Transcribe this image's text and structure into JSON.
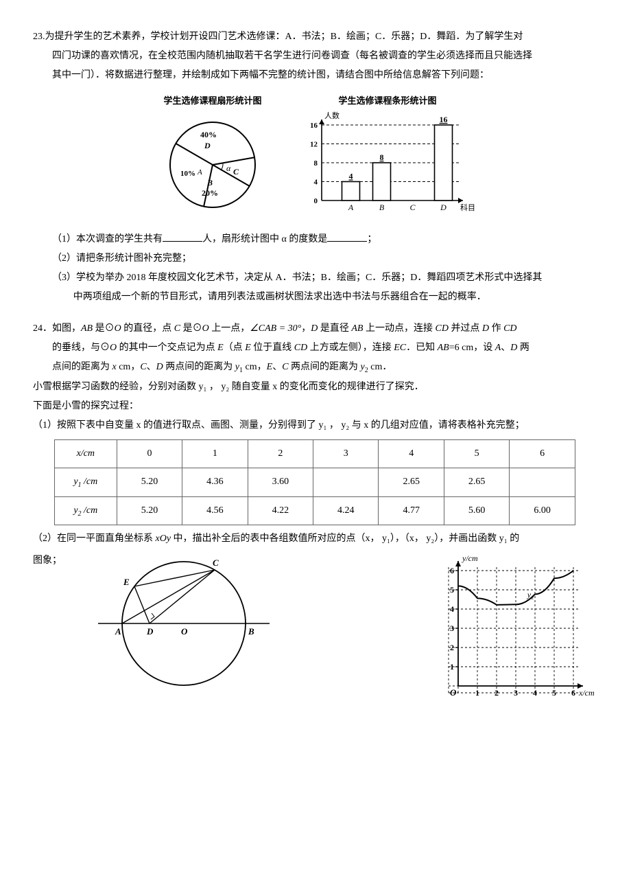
{
  "q23": {
    "number": "23.",
    "intro_l1": "为提升学生的艺术素养，学校计划开设四门艺术选修课：A．书法；B．绘画；C．乐器；D．舞蹈．为了解学生对",
    "intro_l2": "四门功课的喜欢情况，在全校范围内随机抽取若干名学生进行问卷调查（每名被调查的学生必须选择而且只能选择",
    "intro_l3": "其中一门）．将数据进行整理，并绘制成如下两幅不完整的统计图，请结合图中所给信息解答下列问题：",
    "pie_title": "学生选修课程扇形统计图",
    "bar_title": "学生选修课程条形统计图",
    "pie": {
      "labels": {
        "A": "A",
        "B": "B",
        "C": "C",
        "D": "D",
        "alpha": "α"
      },
      "pct": {
        "A": "10%",
        "B": "20%",
        "D": "40%"
      },
      "colors": {
        "bg": "#ffffff",
        "stroke": "#000000"
      }
    },
    "bar": {
      "ylabel": "人数",
      "xlabel": "科目",
      "yticks": [
        "0",
        "4",
        "8",
        "12",
        "16"
      ],
      "cats": [
        "A",
        "B",
        "C",
        "D"
      ],
      "vals": [
        4,
        8,
        null,
        16
      ],
      "val_labels": [
        "4",
        "8",
        "",
        "16"
      ],
      "ymax": 16,
      "bar_color": "#ffffff",
      "bar_stroke": "#000000",
      "grid_color": "#000000",
      "axis_fontsize": 11
    },
    "sub1_a": "（1）本次调查的学生共有",
    "sub1_b": "人，扇形统计图中 α 的度数是",
    "sub1_c": "；",
    "sub2": "（2）请把条形统计图补充完整；",
    "sub3_l1": "（3）学校为举办 2018 年度校园文化艺术节，决定从 A．书法；B．绘画；C．乐器；D．舞蹈四项艺术形式中选择其",
    "sub3_l2": "中两项组成一个新的节目形式，请用列表法或画树状图法求出选中书法与乐器组合在一起的概率．"
  },
  "q24": {
    "number": "24．",
    "intro_l1_a": "如图，",
    "intro_l1_b": " 是⊙",
    "intro_l1_c": " 的直径，点 ",
    "intro_l1_d": " 是⊙",
    "intro_l1_e": " 上一点，",
    "angle": "∠CAB = 30°",
    "intro_l1_f": "，",
    "intro_l1_g": " 是直径 ",
    "intro_l1_h": " 上一动点，连接 ",
    "intro_l1_i": " 并过点 ",
    "intro_l1_j": " 作 ",
    "intro_l2_a": "的垂线，与⊙",
    "intro_l2_b": " 的其中一个交点记为点 ",
    "intro_l2_c": "（点 ",
    "intro_l2_d": " 位于直线 ",
    "intro_l2_e": " 上方或左侧），连接 ",
    "intro_l2_f": "．已知 ",
    "ab_len": "=6 cm",
    "intro_l2_g": "，设 ",
    "intro_l2_h": "、",
    "intro_l2_i": " 两",
    "intro_l3_a": "点间的距离为 ",
    "intro_l3_b": " cm，",
    "intro_l3_c": "、",
    "intro_l3_d": " 两点间的距离为 ",
    "intro_l3_e": " cm，",
    "intro_l3_f": "、",
    "intro_l3_g": " 两点间的距离为 ",
    "intro_l3_h": " cm．",
    "p2": "小雪根据学习函数的经验，分别对函数 y₁ ， y₂ 随自变量 x 的变化而变化的规律进行了探究．",
    "p3": "下面是小雪的探究过程：",
    "sub1": "（1）按照下表中自变量 x 的值进行取点、画图、测量，分别得到了 y₁ ， y₂ 与 x 的几组对应值，请将表格补充完整；",
    "table": {
      "head": [
        "x/cm",
        "0",
        "1",
        "2",
        "3",
        "4",
        "5",
        "6"
      ],
      "row1": [
        "y₁ /cm",
        "5.20",
        "4.36",
        "3.60",
        "",
        "2.65",
        "2.65",
        ""
      ],
      "row2": [
        "y₂ /cm",
        "5.20",
        "4.56",
        "4.22",
        "4.24",
        "4.77",
        "5.60",
        "6.00"
      ]
    },
    "sub2_a": "（2）在同一平面直角坐标系 ",
    "sub2_b": " 中，描出补全后的表中各组数值所对应的点（x， y₁），（x， y₂），并画出函数 y₁ 的",
    "sub2_c": "图象；",
    "circle_labels": {
      "A": "A",
      "B": "B",
      "C": "C",
      "D": "D",
      "E": "E",
      "O": "O"
    },
    "grid": {
      "ylabel": "y/cm",
      "xlabel": "x/cm",
      "y2": "y₂",
      "xticks": [
        "1",
        "2",
        "3",
        "4",
        "5",
        "6"
      ],
      "yticks": [
        "1",
        "2",
        "3",
        "4",
        "5",
        "6"
      ],
      "origin": "O",
      "cell": 28,
      "curve": [
        [
          0,
          5.2
        ],
        [
          1,
          4.56
        ],
        [
          2,
          4.22
        ],
        [
          3,
          4.24
        ],
        [
          4,
          4.77
        ],
        [
          5,
          5.6
        ],
        [
          6,
          6.0
        ]
      ],
      "axis_color": "#000000",
      "grid_color": "#000000"
    }
  }
}
